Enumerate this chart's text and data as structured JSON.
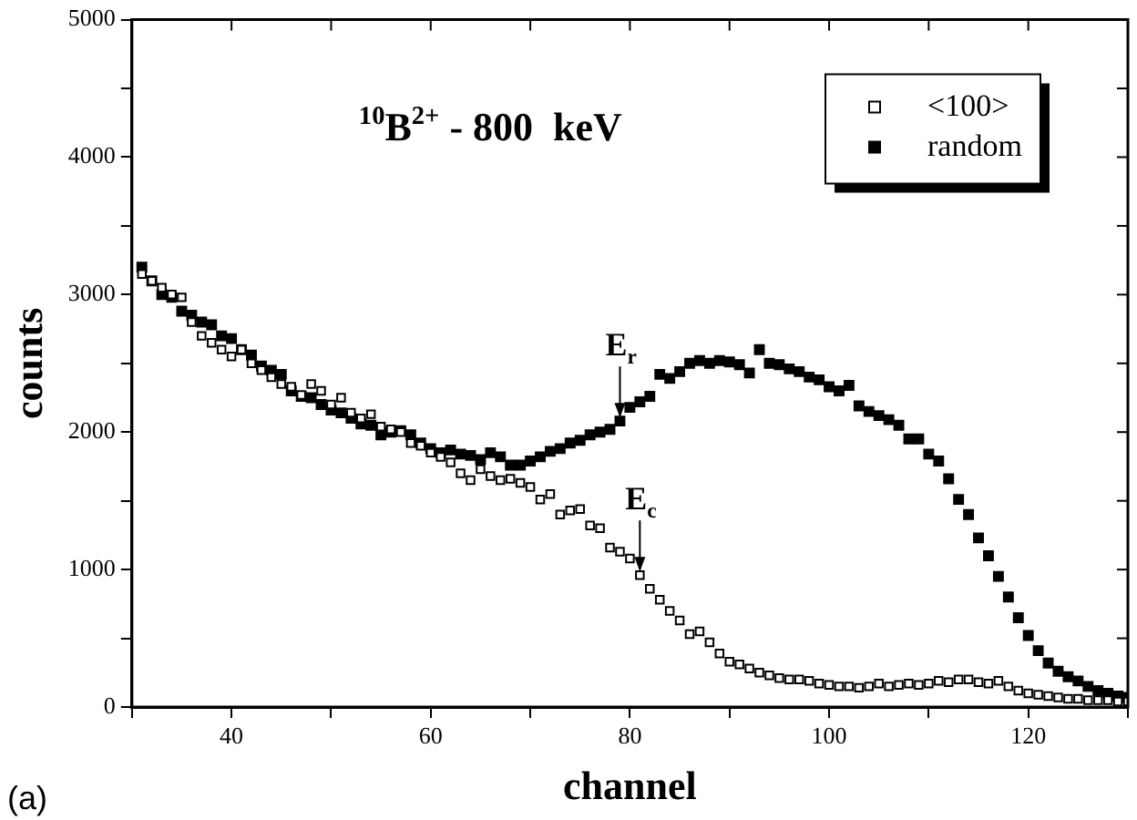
{
  "chart_data": {
    "type": "scatter",
    "title": "$^{10}$B$^{2+}$ - 800  keV",
    "xlabel": "channel",
    "ylabel": "counts",
    "marker": "square",
    "legend": "top right",
    "grid": false,
    "xlim": [
      30,
      130
    ],
    "xticks": [
      {
        "value": 30,
        "label": null
      },
      40,
      {
        "value": 50,
        "label": null
      },
      60,
      {
        "value": 70,
        "label": null
      },
      80,
      {
        "value": 90,
        "label": null
      },
      100,
      {
        "value": 110,
        "label": null
      },
      120,
      {
        "value": 130,
        "label": null
      }
    ],
    "ylim": [
      0,
      5000
    ],
    "yticks": [
      0,
      {
        "value": 500,
        "label": null
      },
      1000,
      {
        "value": 1500,
        "label": null
      },
      2000,
      {
        "value": 2500,
        "label": null
      },
      3000,
      {
        "value": 3500,
        "label": null
      },
      4000,
      {
        "value": 4500,
        "label": null
      },
      5000
    ],
    "x": [
      31,
      32,
      33,
      34,
      35,
      36,
      37,
      38,
      39,
      40,
      41,
      42,
      43,
      44,
      45,
      46,
      47,
      48,
      49,
      50,
      51,
      52,
      53,
      54,
      55,
      56,
      57,
      58,
      59,
      60,
      61,
      62,
      63,
      64,
      65,
      66,
      67,
      68,
      69,
      70,
      71,
      72,
      73,
      74,
      75,
      76,
      77,
      78,
      79,
      80,
      81,
      82,
      83,
      84,
      85,
      86,
      87,
      88,
      89,
      90,
      91,
      92,
      93,
      94,
      95,
      96,
      97,
      98,
      99,
      100,
      101,
      102,
      103,
      104,
      105,
      106,
      107,
      108,
      109,
      110,
      111,
      112,
      113,
      114,
      115,
      116,
      117,
      118,
      119,
      120,
      121,
      122,
      123,
      124,
      125,
      126,
      127,
      128,
      129,
      130
    ],
    "series": [
      {
        "name": "<100>",
        "color": "#000000",
        "values": [
          3150,
          3100,
          3050,
          3000,
          2980,
          2800,
          2700,
          2650,
          2600,
          2550,
          2600,
          2500,
          2450,
          2400,
          2350,
          2330,
          2270,
          2350,
          2300,
          2200,
          2250,
          2140,
          2100,
          2130,
          2040,
          2020,
          2000,
          1920,
          1900,
          1850,
          1820,
          1780,
          1700,
          1650,
          1730,
          1680,
          1650,
          1660,
          1630,
          1600,
          1510,
          1550,
          1400,
          1430,
          1440,
          1320,
          1300,
          1160,
          1130,
          1080,
          960,
          860,
          780,
          700,
          630,
          530,
          550,
          470,
          390,
          330,
          310,
          280,
          250,
          230,
          210,
          200,
          200,
          190,
          170,
          160,
          150,
          150,
          140,
          150,
          170,
          150,
          160,
          170,
          160,
          170,
          190,
          180,
          200,
          200,
          180,
          170,
          190,
          150,
          120,
          100,
          90,
          80,
          70,
          60,
          60,
          50,
          50,
          50,
          40,
          40
        ]
      },
      {
        "name": "random",
        "color": "#000000",
        "values": [
          3200,
          3100,
          3000,
          2980,
          2880,
          2850,
          2800,
          2780,
          2700,
          2680,
          2600,
          2560,
          2480,
          2450,
          2420,
          2300,
          2260,
          2250,
          2200,
          2160,
          2140,
          2100,
          2060,
          2050,
          1980,
          2000,
          2010,
          1980,
          1920,
          1880,
          1850,
          1870,
          1840,
          1830,
          1800,
          1850,
          1820,
          1760,
          1760,
          1790,
          1820,
          1860,
          1880,
          1920,
          1940,
          1980,
          2000,
          2020,
          2080,
          2180,
          2220,
          2260,
          2420,
          2390,
          2440,
          2500,
          2520,
          2500,
          2520,
          2510,
          2490,
          2430,
          2600,
          2500,
          2490,
          2460,
          2440,
          2400,
          2380,
          2330,
          2300,
          2340,
          2190,
          2150,
          2120,
          2090,
          2050,
          1950,
          1950,
          1840,
          1790,
          1660,
          1510,
          1400,
          1230,
          1100,
          950,
          800,
          650,
          520,
          410,
          320,
          260,
          220,
          190,
          150,
          120,
          100,
          80,
          70
        ]
      }
    ],
    "annotations": [
      {
        "text": "E$_{r}$",
        "x": 79,
        "y": 2080
      },
      {
        "text": "E$_{c}$",
        "x": 81,
        "y": 960
      },
      "(a)"
    ]
  }
}
